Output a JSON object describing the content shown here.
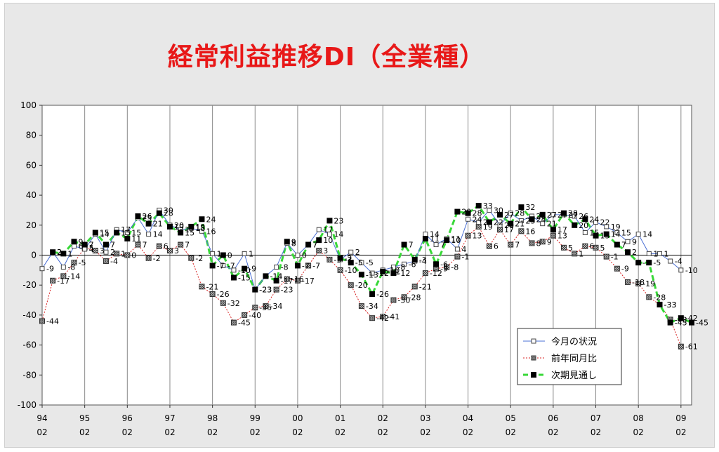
{
  "chart_data": {
    "type": "line",
    "title": "経常利益推移DI（全業種）",
    "ylim": [
      -100,
      100
    ],
    "yticks": [
      100,
      80,
      60,
      40,
      20,
      0,
      -20,
      -40,
      -60,
      -80,
      -100
    ],
    "xlim": [
      1994.0,
      2009.25
    ],
    "xticks": [
      {
        "year": "94",
        "month": "02"
      },
      {
        "year": "95",
        "month": "02"
      },
      {
        "year": "96",
        "month": "02"
      },
      {
        "year": "97",
        "month": "02"
      },
      {
        "year": "98",
        "month": "02"
      },
      {
        "year": "99",
        "month": "02"
      },
      {
        "year": "00",
        "month": "02"
      },
      {
        "year": "01",
        "month": "02"
      },
      {
        "year": "02",
        "month": "02"
      },
      {
        "year": "03",
        "month": "02"
      },
      {
        "year": "04",
        "month": "02"
      },
      {
        "year": "05",
        "month": "02"
      },
      {
        "year": "06",
        "month": "02"
      },
      {
        "year": "07",
        "month": "02"
      },
      {
        "year": "08",
        "month": "02"
      },
      {
        "year": "09",
        "month": "02"
      }
    ],
    "grid": {
      "vertical": true,
      "horizontal": false
    },
    "legend_position": "bottom-right",
    "series": [
      {
        "name": "今月の状況",
        "color": "#4a6fd4",
        "marker": "open-square",
        "x": [
          1994.0,
          1994.25,
          1994.5,
          1994.75,
          1995.0,
          1995.25,
          1995.5,
          1995.75,
          1996.0,
          1996.25,
          1996.5,
          1996.75,
          1997.0,
          1997.25,
          1997.5,
          1997.75,
          1998.0,
          1998.25,
          1998.5,
          1998.75,
          1999.0,
          1999.25,
          1999.5,
          1999.75,
          2000.0,
          2000.25,
          2000.5,
          2000.75,
          2001.0,
          2001.25,
          2001.5,
          2001.75,
          2002.0,
          2002.25,
          2002.5,
          2002.75,
          2003.0,
          2003.25,
          2003.5,
          2003.75,
          2004.0,
          2004.25,
          2004.5,
          2004.75,
          2005.0,
          2005.25,
          2005.5,
          2005.75,
          2006.0,
          2006.25,
          2006.5,
          2006.75,
          2007.0,
          2007.25,
          2007.5,
          2007.75,
          2008.0,
          2008.25,
          2008.5,
          2008.75,
          2009.0
        ],
        "y": [
          -9,
          2,
          -8,
          6,
          4,
          14,
          2,
          17,
          15,
          25,
          14,
          30,
          20,
          17,
          18,
          16,
          1,
          -7,
          -10,
          1,
          -23,
          -14,
          -8,
          8,
          0,
          7,
          17,
          14,
          -3,
          2,
          -5,
          -12,
          -10,
          -8,
          -6,
          -4,
          14,
          7,
          11,
          4,
          24,
          22,
          30,
          20,
          28,
          23,
          26,
          21,
          27,
          27,
          26,
          15,
          22,
          19,
          15,
          9,
          14,
          1,
          1,
          -4,
          -10
        ]
      },
      {
        "name": "前年同月比",
        "color": "#d82020",
        "marker": "hatched-square",
        "x": [
          1994.0,
          1994.25,
          1994.5,
          1994.75,
          1995.0,
          1995.25,
          1995.5,
          1995.75,
          1996.0,
          1996.25,
          1996.5,
          1996.75,
          1997.0,
          1997.25,
          1997.5,
          1997.75,
          1998.0,
          1998.25,
          1998.5,
          1998.75,
          1999.0,
          1999.25,
          1999.5,
          1999.75,
          2000.0,
          2000.25,
          2000.5,
          2000.75,
          2001.0,
          2001.25,
          2001.5,
          2001.75,
          2002.0,
          2002.25,
          2002.5,
          2002.75,
          2003.0,
          2003.25,
          2003.5,
          2003.75,
          2004.0,
          2004.25,
          2004.5,
          2004.75,
          2005.0,
          2005.25,
          2005.5,
          2005.75,
          2006.0,
          2006.25,
          2006.5,
          2006.75,
          2007.0,
          2007.25,
          2007.5,
          2007.75,
          2008.0,
          2008.25,
          2008.5,
          2008.75,
          2009.0
        ],
        "y": [
          -44,
          -17,
          -14,
          -5,
          5,
          3,
          -4,
          1,
          0,
          7,
          -2,
          6,
          3,
          7,
          -2,
          -21,
          -26,
          -32,
          -45,
          -40,
          -35,
          -34,
          -23,
          -16,
          -17,
          -7,
          3,
          -3,
          -10,
          -20,
          -34,
          -42,
          -41,
          -30,
          -28,
          -21,
          -12,
          -9,
          -8,
          -1,
          13,
          19,
          6,
          17,
          7,
          16,
          8,
          9,
          13,
          5,
          1,
          6,
          5,
          -1,
          -9,
          -18,
          -19,
          -28,
          -33,
          -43,
          -61
        ]
      },
      {
        "name": "次期見通し",
        "color": "#38d838",
        "marker": "filled-square",
        "x": [
          1994.25,
          1994.5,
          1994.75,
          1995.0,
          1995.25,
          1995.5,
          1995.75,
          1996.0,
          1996.25,
          1996.5,
          1996.75,
          1997.0,
          1997.25,
          1997.5,
          1997.75,
          1998.0,
          1998.25,
          1998.5,
          1998.75,
          1999.0,
          1999.25,
          1999.5,
          1999.75,
          2000.0,
          2000.25,
          2000.5,
          2000.75,
          2001.0,
          2001.25,
          2001.5,
          2001.75,
          2002.0,
          2002.25,
          2002.5,
          2002.75,
          2003.0,
          2003.25,
          2003.5,
          2003.75,
          2004.0,
          2004.25,
          2004.5,
          2004.75,
          2005.0,
          2005.25,
          2005.5,
          2005.75,
          2006.0,
          2006.25,
          2006.5,
          2006.75,
          2007.0,
          2007.25,
          2007.5,
          2007.75,
          2008.0,
          2008.25,
          2008.5,
          2008.75,
          2009.0,
          2009.25
        ],
        "y": [
          2,
          1,
          9,
          7,
          15,
          7,
          15,
          11,
          26,
          21,
          28,
          19,
          15,
          19,
          24,
          -7,
          0,
          -15,
          -9,
          -23,
          -14,
          -17,
          9,
          -7,
          7,
          10,
          23,
          -2,
          -5,
          -13,
          -26,
          -11,
          -12,
          7,
          -3,
          11,
          -6,
          10,
          29,
          28,
          33,
          22,
          27,
          21,
          32,
          24,
          27,
          17,
          28,
          20,
          24,
          13,
          14,
          7,
          2,
          -5,
          -5,
          -33,
          -45,
          -42,
          -45
        ]
      }
    ],
    "labels": {
      "series0": [
        "-9",
        "2",
        "-8",
        "6",
        "4",
        "14",
        "2",
        "17",
        "15",
        "25",
        "14",
        "30",
        "20",
        "17",
        "18",
        "16",
        "1",
        "-7",
        "-10",
        "1",
        "-23",
        "-14",
        "-8",
        "8",
        "0",
        "7",
        "17",
        "14",
        "-3",
        "2",
        "-5",
        "-12",
        "-10",
        "-8",
        "-6",
        "-4",
        "14",
        "7",
        "11",
        "4",
        "24",
        "22",
        "30",
        "20",
        "28",
        "23",
        "26",
        "21",
        "27",
        "27",
        "26",
        "15",
        "22",
        "19",
        "15",
        "9",
        "14",
        "1",
        "1",
        "-4",
        "-10"
      ],
      "series1": [
        "-44",
        "-17",
        "-14",
        "-5",
        "5",
        "3",
        "-4",
        "1",
        "0",
        "7",
        "-2",
        "6",
        "3",
        "7",
        "-2",
        "-21",
        "-26",
        "-32",
        "-45",
        "-40",
        "-35",
        "-34",
        "-23",
        "-16",
        "-17",
        "-7",
        "3",
        "-3",
        "-10",
        "-20",
        "-34",
        "-42",
        "-41",
        "-30",
        "-28",
        "-21",
        "-12",
        "-9",
        "-8",
        "-1",
        "13",
        "19",
        "6",
        "17",
        "7",
        "16",
        "8",
        "9",
        "13",
        "5",
        "1",
        "6",
        "5",
        "-1",
        "-9",
        "-18",
        "-19",
        "-28",
        "-33",
        "-43",
        "-61"
      ],
      "series2": [
        "2",
        "1",
        "9",
        "7",
        "15",
        "7",
        "15",
        "11",
        "26",
        "21",
        "28",
        "19",
        "15",
        "19",
        "24",
        "-7",
        "0",
        "-15",
        "-9",
        "-23",
        "-14",
        "-17",
        "9",
        "-7",
        "7",
        "10",
        "23",
        "-2",
        "-5",
        "-13",
        "-26",
        "-11",
        "-12",
        "7",
        "-3",
        "11",
        "-6",
        "10",
        "29",
        "28",
        "33",
        "22",
        "27",
        "21",
        "32",
        "24",
        "27",
        "17",
        "28",
        "20",
        "24",
        "13",
        "14",
        "7",
        "2",
        "-5",
        "-5",
        "-33",
        "-45",
        "-42",
        "-45"
      ]
    }
  }
}
